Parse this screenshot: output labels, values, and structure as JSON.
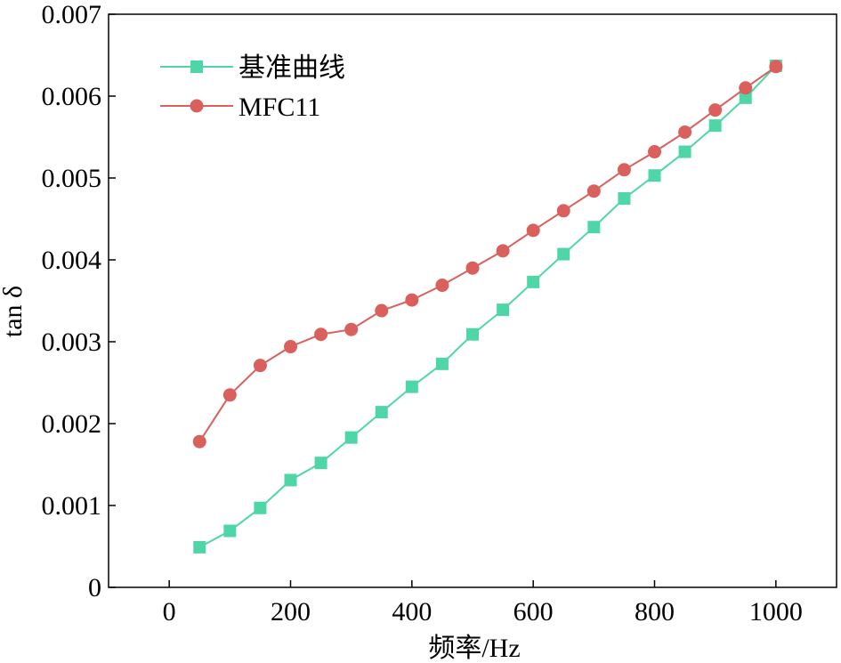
{
  "chart_data": {
    "type": "line",
    "xlabel": "频率/Hz",
    "ylabel": "tan δ",
    "xlim": [
      -100,
      1100
    ],
    "ylim": [
      0,
      0.007
    ],
    "x_ticks": [
      0,
      200,
      400,
      600,
      800,
      1000
    ],
    "y_ticks": [
      0,
      0.001,
      0.002,
      0.003,
      0.004,
      0.005,
      0.006,
      0.007
    ],
    "y_tick_labels": [
      "0",
      "0.001",
      "0.002",
      "0.003",
      "0.004",
      "0.005",
      "0.006",
      "0.007"
    ],
    "x": [
      50,
      100,
      150,
      200,
      250,
      300,
      350,
      400,
      450,
      500,
      550,
      600,
      650,
      700,
      750,
      800,
      850,
      900,
      950,
      1000
    ],
    "grid": false,
    "legend_position": "top-left",
    "series": [
      {
        "name": "基准曲线",
        "color": "#4fd6a6",
        "marker": "square",
        "values": [
          0.00049,
          0.00069,
          0.00097,
          0.00131,
          0.00152,
          0.00183,
          0.00214,
          0.00245,
          0.00273,
          0.00309,
          0.00339,
          0.00373,
          0.00407,
          0.0044,
          0.00475,
          0.00503,
          0.00532,
          0.00564,
          0.00598,
          0.00637
        ]
      },
      {
        "name": "MFC11",
        "color": "#d9605c",
        "marker": "circle",
        "values": [
          0.00178,
          0.00235,
          0.00271,
          0.00294,
          0.00309,
          0.00315,
          0.00338,
          0.00351,
          0.00369,
          0.0039,
          0.00411,
          0.00436,
          0.0046,
          0.00484,
          0.0051,
          0.00532,
          0.00556,
          0.00583,
          0.0061,
          0.00636
        ]
      }
    ]
  }
}
